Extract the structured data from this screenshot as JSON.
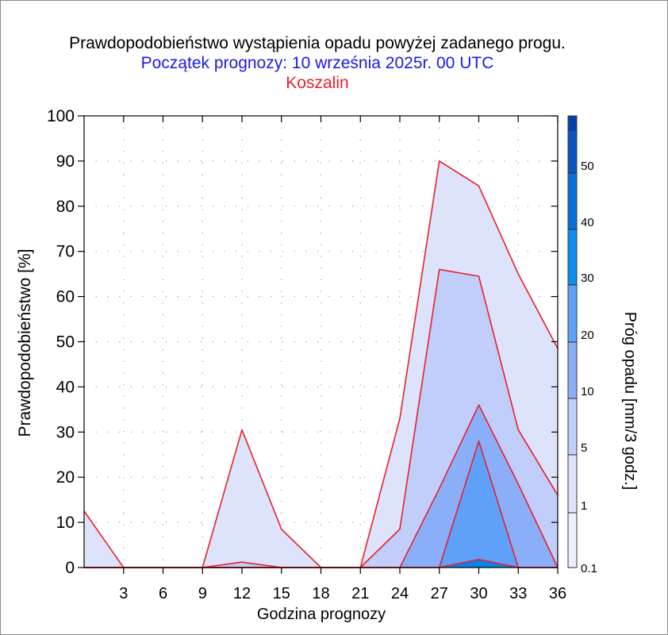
{
  "title": "Prawdopodobieństwo wystąpienia opadu powyżej zadanego progu.",
  "subtitle": "Początek prognozy: 10 września 2025r. 00 UTC",
  "location": "Koszalin",
  "chart_data": {
    "type": "area",
    "xlabel": "Godzina prognozy",
    "ylabel": "Prawdopodobieństwo [%]",
    "colorbar_label": "Próg opadu [mm/3 godz.]",
    "xlim": [
      0,
      36
    ],
    "ylim": [
      0,
      100
    ],
    "x": [
      0,
      3,
      6,
      9,
      12,
      15,
      18,
      21,
      24,
      27,
      30,
      33,
      36
    ],
    "x_ticks": [
      3,
      6,
      9,
      12,
      15,
      18,
      21,
      24,
      27,
      30,
      33,
      36
    ],
    "y_ticks": [
      0,
      10,
      20,
      30,
      40,
      50,
      60,
      70,
      80,
      90,
      100
    ],
    "series": [
      {
        "name": "0.1",
        "color": "#dde3fb",
        "values": [
          12.5,
          0,
          0,
          0,
          30.5,
          8.5,
          0,
          0,
          33,
          90,
          84.5,
          65,
          48.5
        ]
      },
      {
        "name": "1",
        "color": "#c1cefa",
        "values": [
          0,
          0,
          0,
          0,
          1.2,
          0,
          0,
          0,
          8.5,
          66,
          64.5,
          30.5,
          16
        ]
      },
      {
        "name": "5",
        "color": "#8aaef8",
        "values": [
          0,
          0,
          0,
          0,
          0,
          0,
          0,
          0,
          0,
          17.5,
          36,
          18.5,
          0
        ]
      },
      {
        "name": "10",
        "color": "#5fa0f8",
        "values": [
          0,
          0,
          0,
          0,
          0,
          0,
          0,
          0,
          0,
          0,
          28,
          0,
          0
        ]
      },
      {
        "name": "20",
        "color": "#0a82e6",
        "values": [
          0,
          0,
          0,
          0,
          0,
          0,
          0,
          0,
          0,
          0,
          1.8,
          0,
          0
        ]
      }
    ],
    "grid": true,
    "line_color": "#e8202a",
    "colorbar": {
      "ticks": [
        "0.1",
        "1",
        "5",
        "10",
        "20",
        "30",
        "40",
        "50"
      ],
      "bands": [
        {
          "from": "0.1",
          "to": "1",
          "color": "#eceffd"
        },
        {
          "from": "1",
          "to": "5",
          "color": "#dde3fb"
        },
        {
          "from": "5",
          "to": "10",
          "color": "#c1cefa"
        },
        {
          "from": "10",
          "to": "20",
          "color": "#8aaef8"
        },
        {
          "from": "20",
          "to": "30",
          "color": "#5fa0f8"
        },
        {
          "from": "30",
          "to": "40",
          "color": "#0a8ff0"
        },
        {
          "from": "40",
          "to": "50",
          "color": "#0a6fd8"
        },
        {
          "from": "50",
          "to": "",
          "color": "#0a55c0"
        },
        {
          "from": "",
          "to": "",
          "color": "#0440a8"
        }
      ]
    }
  }
}
